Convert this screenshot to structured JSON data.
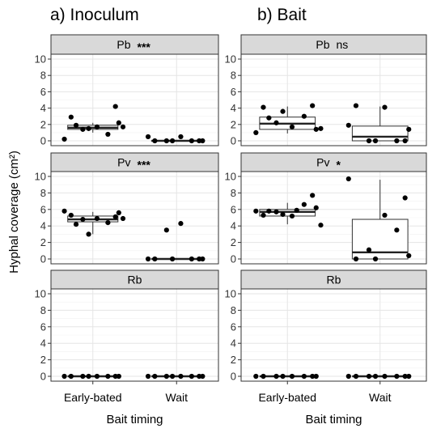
{
  "chart_data": [
    {
      "type": "box",
      "title": "a) Inoculum",
      "xlabel": "Bait timing",
      "ylabel": "Hyphal coverage (cm²)",
      "categories": [
        "Early-bated",
        "Wait"
      ],
      "ylim": [
        0,
        10
      ],
      "yticks": [
        0,
        2,
        4,
        6,
        8,
        10
      ],
      "grid": true,
      "facets": [
        {
          "strip": "Pb",
          "significance": "***",
          "groups": [
            {
              "category": "Early-bated",
              "box": {
                "q1": 1.4,
                "median": 1.6,
                "q3": 1.9,
                "whisker_low": 1.0,
                "whisker_high": 2.2
              },
              "points": [
                0.2,
                0.8,
                1.4,
                2.2,
                2.9,
                1.7,
                4.2,
                1.5,
                1.7,
                1.9
              ]
            },
            {
              "category": "Wait",
              "box": {
                "q1": 0,
                "median": 0,
                "q3": 0,
                "whisker_low": 0,
                "whisker_high": 0
              },
              "points": [
                0.5,
                0,
                0,
                0,
                0,
                0.5,
                0,
                0
              ]
            }
          ]
        },
        {
          "strip": "Pv",
          "significance": "***",
          "groups": [
            {
              "category": "Early-bated",
              "box": {
                "q1": 4.5,
                "median": 4.8,
                "q3": 5.2,
                "whisker_low": 3.0,
                "whisker_high": 5.7
              },
              "points": [
                5.8,
                4.4,
                4.8,
                5.6,
                5.3,
                4.9,
                5.1,
                3.0,
                4.9,
                4.2
              ]
            },
            {
              "category": "Wait",
              "box": {
                "q1": 0,
                "median": 0,
                "q3": 0,
                "whisker_low": 0,
                "whisker_high": 0
              },
              "points": [
                0,
                0,
                3.5,
                0,
                0,
                4.3,
                0,
                0
              ]
            }
          ]
        },
        {
          "strip": "Rb",
          "significance": "",
          "groups": [
            {
              "category": "Early-bated",
              "box": {
                "q1": 0,
                "median": 0,
                "q3": 0,
                "whisker_low": 0,
                "whisker_high": 0
              },
              "points": [
                0,
                0,
                0,
                0,
                0,
                0,
                0,
                0
              ]
            },
            {
              "category": "Wait",
              "box": {
                "q1": 0,
                "median": 0,
                "q3": 0,
                "whisker_low": 0,
                "whisker_high": 0
              },
              "points": [
                0,
                0,
                0,
                0,
                0,
                0,
                0,
                0
              ]
            }
          ]
        }
      ]
    },
    {
      "type": "box",
      "title": "b) Bait",
      "xlabel": "Bait timing",
      "ylabel": "",
      "categories": [
        "Early-bated",
        "Wait"
      ],
      "ylim": [
        0,
        10
      ],
      "yticks": [
        0,
        2,
        4,
        6,
        8,
        10
      ],
      "grid": true,
      "facets": [
        {
          "strip": "Pb",
          "significance": "ns",
          "groups": [
            {
              "category": "Early-bated",
              "box": {
                "q1": 1.4,
                "median": 2.1,
                "q3": 2.9,
                "whisker_low": 0.9,
                "whisker_high": 4.2
              },
              "points": [
                1.0,
                3.0,
                2.2,
                1.4,
                4.1,
                1.7,
                4.3,
                3.6,
                1.5,
                2.8
              ]
            },
            {
              "category": "Wait",
              "box": {
                "q1": 0,
                "median": 0.5,
                "q3": 1.8,
                "whisker_low": 0,
                "whisker_high": 4.2
              },
              "points": [
                1.9,
                0,
                0,
                1.4,
                4.3,
                4.1,
                0,
                0
              ]
            }
          ]
        },
        {
          "strip": "Pv",
          "significance": "*",
          "groups": [
            {
              "category": "Early-bated",
              "box": {
                "q1": 5.2,
                "median": 5.7,
                "q3": 6.0,
                "whisker_low": 4.2,
                "whisker_high": 6.8
              },
              "points": [
                5.8,
                6.6,
                5.7,
                6.2,
                5.3,
                5.2,
                7.7,
                5.4,
                4.1,
                5.8,
                5.9
              ]
            },
            {
              "category": "Wait",
              "box": {
                "q1": 0,
                "median": 0.8,
                "q3": 4.8,
                "whisker_low": 0,
                "whisker_high": 9.6
              },
              "points": [
                9.7,
                3.5,
                1.1,
                0.4,
                0,
                5.3,
                7.4,
                0
              ]
            }
          ]
        },
        {
          "strip": "Rb",
          "significance": "",
          "groups": [
            {
              "category": "Early-bated",
              "box": {
                "q1": 0,
                "median": 0,
                "q3": 0,
                "whisker_low": 0,
                "whisker_high": 0
              },
              "points": [
                0,
                0,
                0,
                0,
                0,
                0,
                0,
                0
              ]
            },
            {
              "category": "Wait",
              "box": {
                "q1": 0,
                "median": 0,
                "q3": 0,
                "whisker_low": 0,
                "whisker_high": 0
              },
              "points": [
                0,
                0,
                0,
                0,
                0,
                0,
                0,
                0
              ]
            }
          ]
        }
      ]
    }
  ]
}
